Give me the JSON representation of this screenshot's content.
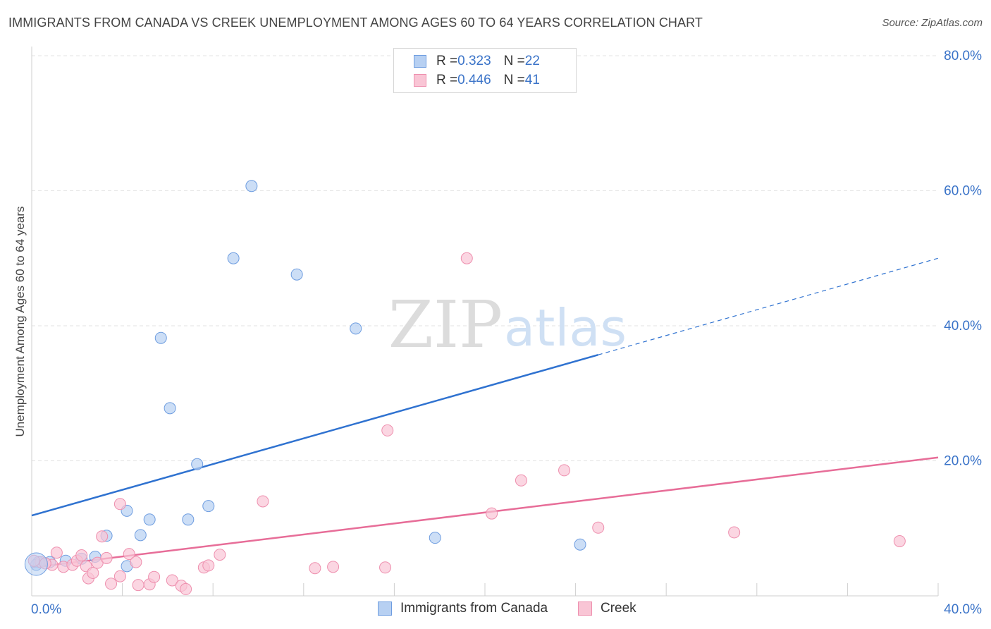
{
  "header": {
    "title": "IMMIGRANTS FROM CANADA VS CREEK UNEMPLOYMENT AMONG AGES 60 TO 64 YEARS CORRELATION CHART",
    "source": "Source: ZipAtlas.com"
  },
  "watermark": {
    "zip": "ZIP",
    "atlas": "atlas"
  },
  "legend": {
    "r_label": "R = ",
    "n_label": "N = ",
    "rows": [
      {
        "r": "0.323",
        "n": "22",
        "fill": "#b7d0f2",
        "stroke": "#6e9de0"
      },
      {
        "r": "0.446",
        "n": "41",
        "fill": "#f9c5d5",
        "stroke": "#ee8fae"
      }
    ]
  },
  "bottom_legend": {
    "items": [
      {
        "label": "Immigrants from Canada",
        "fill": "#b7d0f2",
        "stroke": "#6e9de0"
      },
      {
        "label": "Creek",
        "fill": "#f9c5d5",
        "stroke": "#ee8fae"
      }
    ]
  },
  "chart_data": {
    "type": "scatter",
    "title": "IMMIGRANTS FROM CANADA VS CREEK UNEMPLOYMENT AMONG AGES 60 TO 64 YEARS CORRELATION CHART",
    "xlabel": "",
    "ylabel": "Unemployment Among Ages 60 to 64 years",
    "xlim": [
      0,
      40
    ],
    "ylim": [
      0,
      80
    ],
    "x_tick_labels": [
      "0.0%",
      "40.0%"
    ],
    "x_tick_values": [
      0,
      40
    ],
    "y_tick_labels": [
      "20.0%",
      "40.0%",
      "60.0%",
      "80.0%"
    ],
    "y_tick_values": [
      20,
      40,
      60,
      80
    ],
    "grid": true,
    "colors": {
      "blue": "#3a73c8",
      "blue_line": "#2f72d0",
      "pink_line": "#e76d98",
      "grid": "#e3e3e3",
      "tick_text": "#3a73c8"
    },
    "series": [
      {
        "name": "Immigrants from Canada",
        "r": 0.323,
        "n": 22,
        "fill": "#b7d0f2",
        "stroke": "#6e9de0",
        "points": [
          [
            0.3,
            5.0
          ],
          [
            0.8,
            5.0
          ],
          [
            1.5,
            5.2
          ],
          [
            2.2,
            5.5
          ],
          [
            2.8,
            5.8
          ],
          [
            3.3,
            8.9
          ],
          [
            4.2,
            12.6
          ],
          [
            4.2,
            4.4
          ],
          [
            4.8,
            9.0
          ],
          [
            5.2,
            11.3
          ],
          [
            5.7,
            38.2
          ],
          [
            6.1,
            27.8
          ],
          [
            6.9,
            11.3
          ],
          [
            7.3,
            19.5
          ],
          [
            7.8,
            13.3
          ],
          [
            8.9,
            50.0
          ],
          [
            9.7,
            60.7
          ],
          [
            11.7,
            47.6
          ],
          [
            14.3,
            39.6
          ],
          [
            17.8,
            8.6
          ],
          [
            24.2,
            7.6
          ],
          [
            0.2,
            4.6
          ]
        ],
        "trend": {
          "x0": 0,
          "y0": 11.9,
          "x1": 25.0,
          "y1": 35.7,
          "dash_to_x": 40.0,
          "dash_to_y": 50.0
        }
      },
      {
        "name": "Creek",
        "r": 0.446,
        "n": 41,
        "fill": "#f9c5d5",
        "stroke": "#ee8fae",
        "points": [
          [
            0.4,
            5.0
          ],
          [
            0.9,
            4.6
          ],
          [
            1.1,
            6.4
          ],
          [
            1.4,
            4.3
          ],
          [
            1.8,
            4.6
          ],
          [
            2.0,
            5.2
          ],
          [
            2.2,
            6.0
          ],
          [
            2.4,
            4.4
          ],
          [
            2.5,
            2.6
          ],
          [
            2.7,
            3.4
          ],
          [
            2.9,
            4.9
          ],
          [
            3.1,
            8.8
          ],
          [
            3.3,
            5.6
          ],
          [
            3.5,
            1.8
          ],
          [
            3.9,
            13.6
          ],
          [
            3.9,
            2.9
          ],
          [
            4.3,
            6.2
          ],
          [
            4.6,
            5.0
          ],
          [
            4.7,
            1.6
          ],
          [
            5.2,
            1.7
          ],
          [
            5.4,
            2.8
          ],
          [
            6.2,
            2.3
          ],
          [
            6.6,
            1.5
          ],
          [
            6.8,
            1.0
          ],
          [
            7.6,
            4.2
          ],
          [
            7.8,
            4.5
          ],
          [
            8.3,
            6.1
          ],
          [
            10.2,
            14.0
          ],
          [
            12.5,
            4.1
          ],
          [
            13.3,
            4.3
          ],
          [
            15.6,
            4.2
          ],
          [
            15.7,
            24.5
          ],
          [
            19.2,
            50.0
          ],
          [
            20.3,
            12.2
          ],
          [
            21.6,
            17.1
          ],
          [
            23.5,
            18.6
          ],
          [
            25.0,
            10.1
          ],
          [
            31.0,
            9.4
          ],
          [
            38.3,
            8.1
          ],
          [
            0.1,
            5.2
          ],
          [
            0.6,
            4.8
          ]
        ],
        "trend": {
          "x0": 0,
          "y0": 4.2,
          "x1": 40.0,
          "y1": 20.5
        }
      }
    ]
  }
}
